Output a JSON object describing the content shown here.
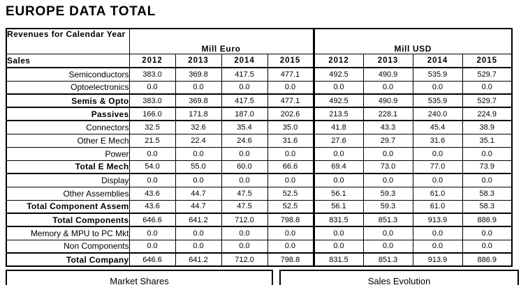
{
  "title": "EUROPE DATA TOTAL",
  "table": {
    "corner_header": "Revenues for Calendar Year",
    "sales_label": "Sales",
    "groups": [
      {
        "label": "Mill Euro"
      },
      {
        "label": "Mill USD"
      }
    ],
    "years": [
      "2012",
      "2013",
      "2014",
      "2015"
    ],
    "rows": [
      {
        "label": "Semiconductors",
        "is_total": false,
        "section_end": false,
        "euro": [
          "383.0",
          "369.8",
          "417.5",
          "477.1"
        ],
        "usd": [
          "492.5",
          "490.9",
          "535.9",
          "529.7"
        ]
      },
      {
        "label": "Optoelectronics",
        "is_total": false,
        "section_end": true,
        "euro": [
          "0.0",
          "0.0",
          "0.0",
          "0.0"
        ],
        "usd": [
          "0.0",
          "0.0",
          "0.0",
          "0.0"
        ]
      },
      {
        "label": "Semis & Opto",
        "is_total": true,
        "section_end": true,
        "euro": [
          "383.0",
          "369.8",
          "417.5",
          "477.1"
        ],
        "usd": [
          "492.5",
          "490.9",
          "535.9",
          "529.7"
        ]
      },
      {
        "label": "Passives",
        "is_total": true,
        "section_end": true,
        "euro": [
          "166.0",
          "171.8",
          "187.0",
          "202.6"
        ],
        "usd": [
          "213.5",
          "228.1",
          "240.0",
          "224.9"
        ]
      },
      {
        "label": "Connectors",
        "is_total": false,
        "section_end": false,
        "euro": [
          "32.5",
          "32.6",
          "35.4",
          "35.0"
        ],
        "usd": [
          "41.8",
          "43.3",
          "45.4",
          "38.9"
        ]
      },
      {
        "label": "Other E Mech",
        "is_total": false,
        "section_end": false,
        "euro": [
          "21.5",
          "22.4",
          "24.6",
          "31.6"
        ],
        "usd": [
          "27.6",
          "29.7",
          "31.6",
          "35.1"
        ]
      },
      {
        "label": "Power",
        "is_total": false,
        "section_end": false,
        "euro": [
          "0.0",
          "0.0",
          "0.0",
          "0.0"
        ],
        "usd": [
          "0.0",
          "0.0",
          "0.0",
          "0.0"
        ]
      },
      {
        "label": "Total E Mech",
        "is_total": true,
        "section_end": true,
        "euro": [
          "54.0",
          "55.0",
          "60.0",
          "66.6"
        ],
        "usd": [
          "69.4",
          "73.0",
          "77.0",
          "73.9"
        ]
      },
      {
        "label": "Display",
        "is_total": false,
        "section_end": false,
        "euro": [
          "0.0",
          "0.0",
          "0.0",
          "0.0"
        ],
        "usd": [
          "0.0",
          "0.0",
          "0.0",
          "0.0"
        ]
      },
      {
        "label": "Other Assemblies",
        "is_total": false,
        "section_end": false,
        "euro": [
          "43.6",
          "44.7",
          "47.5",
          "52.5"
        ],
        "usd": [
          "56.1",
          "59.3",
          "61.0",
          "58.3"
        ]
      },
      {
        "label": "Total Component Assem",
        "is_total": true,
        "section_end": true,
        "euro": [
          "43.6",
          "44.7",
          "47.5",
          "52.5"
        ],
        "usd": [
          "56.1",
          "59.3",
          "61.0",
          "58.3"
        ]
      },
      {
        "label": "Total Components",
        "is_total": true,
        "section_end": true,
        "euro": [
          "646.6",
          "641.2",
          "712.0",
          "798.8"
        ],
        "usd": [
          "831.5",
          "851.3",
          "913.9",
          "886.9"
        ]
      },
      {
        "label": "Memory & MPU to PC Mkt",
        "is_total": false,
        "section_end": false,
        "euro": [
          "0.0",
          "0.0",
          "0.0",
          "0.0"
        ],
        "usd": [
          "0.0",
          "0.0",
          "0.0",
          "0.0"
        ]
      },
      {
        "label": "Non Components",
        "is_total": false,
        "section_end": true,
        "euro": [
          "0.0",
          "0.0",
          "0.0",
          "0.0"
        ],
        "usd": [
          "0.0",
          "0.0",
          "0.0",
          "0.0"
        ]
      },
      {
        "label": "Total Company",
        "is_total": true,
        "section_end": true,
        "euro": [
          "646.6",
          "641.2",
          "712.0",
          "798.8"
        ],
        "usd": [
          "831.5",
          "851.3",
          "913.9",
          "886.9"
        ]
      }
    ]
  },
  "footer_sections": [
    {
      "label": "Market Shares"
    },
    {
      "label": "Sales Evolution"
    }
  ],
  "colors": {
    "text": "#000000",
    "border": "#000000",
    "background": "#ffffff"
  }
}
